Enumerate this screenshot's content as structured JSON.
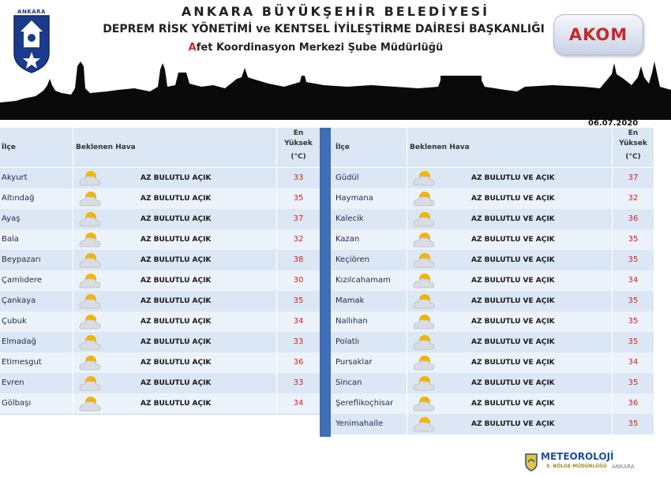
{
  "header": {
    "logo_text": "ANKARA",
    "title_line1": "ANKARA BÜYÜKŞEHİR BELEDİYESİ",
    "title_line2": "DEPREM RİSK YÖNETİMİ ve KENTSEL İYİLEŞTİRME DAİRESİ BAŞKANLIĞI",
    "title_line3_initial": "A",
    "title_line3_rest": "fet Koordinasyon Merkezi Şube Müdürlüğü",
    "akom_badge": "AKOM",
    "date": "06.07.2020"
  },
  "table": {
    "headers": {
      "district": "İlçe",
      "forecast": "Beklenen Hava",
      "max_line1": "En",
      "max_line2": "Yüksek",
      "max_line3": "(°C)"
    },
    "left": [
      {
        "district": "Akyurt",
        "condition": "AZ BULUTLU AÇIK",
        "temp": "33"
      },
      {
        "district": "Altındağ",
        "condition": "AZ BULUTLU AÇIK",
        "temp": "35"
      },
      {
        "district": "Ayaş",
        "condition": "AZ BULUTLU AÇIK",
        "temp": "37"
      },
      {
        "district": "Bala",
        "condition": "AZ BULUTLU AÇIK",
        "temp": "32"
      },
      {
        "district": "Beypazarı",
        "condition": "AZ BULUTLU AÇIK",
        "temp": "38"
      },
      {
        "district": "Çamlıdere",
        "condition": "AZ BULUTLU AÇIK",
        "temp": "30"
      },
      {
        "district": "Çankaya",
        "condition": "AZ BULUTLU AÇIK",
        "temp": "35"
      },
      {
        "district": "Çubuk",
        "condition": "AZ BULUTLU AÇIK",
        "temp": "34"
      },
      {
        "district": "Elmadağ",
        "condition": "AZ BULUTLU AÇIK",
        "temp": "33"
      },
      {
        "district": "Etimesgut",
        "condition": "AZ BULUTLU AÇIK",
        "temp": "36"
      },
      {
        "district": "Evren",
        "condition": "AZ BULUTLU AÇIK",
        "temp": "33"
      },
      {
        "district": "Gölbaşı",
        "condition": "AZ BULUTLU AÇIK",
        "temp": "34"
      }
    ],
    "right": [
      {
        "district": "Güdül",
        "condition": "AZ BULUTLU VE AÇIK",
        "temp": "37"
      },
      {
        "district": "Haymana",
        "condition": "AZ BULUTLU VE AÇIK",
        "temp": "32"
      },
      {
        "district": "Kalecik",
        "condition": "AZ BULUTLU VE AÇIK",
        "temp": "36"
      },
      {
        "district": "Kazan",
        "condition": "AZ BULUTLU VE AÇIK",
        "temp": "35"
      },
      {
        "district": "Keçiören",
        "condition": "AZ BULUTLU VE AÇIK",
        "temp": "35"
      },
      {
        "district": "Kızılcahamam",
        "condition": "AZ BULUTLU VE AÇIK",
        "temp": "34"
      },
      {
        "district": "Mamak",
        "condition": "AZ BULUTLU VE AÇIK",
        "temp": "35"
      },
      {
        "district": "Nallıhan",
        "condition": "AZ BULUTLU VE AÇIK",
        "temp": "35"
      },
      {
        "district": "Polatlı",
        "condition": "AZ BULUTLU VE AÇIK",
        "temp": "35"
      },
      {
        "district": "Pursaklar",
        "condition": "AZ BULUTLU VE AÇIK",
        "temp": "34"
      },
      {
        "district": "Sincan",
        "condition": "AZ BULUTLU VE AÇIK",
        "temp": "35"
      },
      {
        "district": "Şereflikoçhisar",
        "condition": "AZ BULUTLU VE AÇIK",
        "temp": "36"
      },
      {
        "district": "Yenimahalle",
        "condition": "AZ BULUTLU VE AÇIK",
        "temp": "35"
      }
    ],
    "icon": "partly-cloudy-sun-icon"
  },
  "footer": {
    "meteo_title": "METEOROLOJİ",
    "meteo_sub": "9. BÖLGE MÜDÜRLÜĞÜ",
    "meteo_city": "ANKARA"
  },
  "colors": {
    "header_cell": "#dbe7f4",
    "row_alt": "#ecf2fa",
    "divider": "#3d6fb6",
    "temp": "#d32020"
  }
}
